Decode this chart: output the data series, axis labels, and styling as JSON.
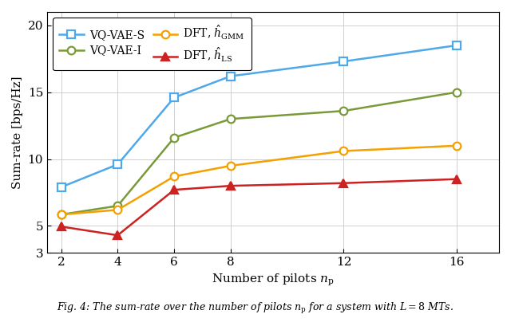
{
  "x": [
    2,
    4,
    6,
    8,
    12,
    16
  ],
  "vqvae_s": [
    7.9,
    9.6,
    14.6,
    16.2,
    17.3,
    18.5
  ],
  "vqvae_i": [
    5.85,
    6.5,
    11.6,
    13.0,
    13.6,
    15.0
  ],
  "dft_gmm": [
    5.85,
    6.2,
    8.7,
    9.5,
    10.6,
    11.0
  ],
  "dft_ls": [
    4.95,
    4.3,
    7.7,
    8.0,
    8.2,
    8.5
  ],
  "color_vqvae_s": "#4fa8e8",
  "color_vqvae_i": "#7a9a3a",
  "color_dft_gmm": "#f5a000",
  "color_dft_ls": "#cc2222",
  "xlabel": "Number of pilots $n_\\mathrm{p}$",
  "ylabel": "Sum-rate [bps/Hz]",
  "ylim": [
    3,
    21
  ],
  "xlim": [
    1.5,
    17.5
  ],
  "yticks": [
    3,
    5,
    10,
    15,
    20
  ],
  "xticks": [
    2,
    4,
    6,
    8,
    12,
    16
  ],
  "legend_labels": [
    "VQ-VAE-S",
    "VQ-VAE-I",
    "DFT, $\\hat{h}_{\\mathrm{GMM}}$",
    "DFT, $\\hat{h}_{\\mathrm{LS}}$"
  ],
  "linewidth": 1.8,
  "markersize": 7,
  "caption": "Fig. 4: The sum-rate over the number of pilots $n_\\mathrm{p}$ for a system with $L = 8$ MTs."
}
